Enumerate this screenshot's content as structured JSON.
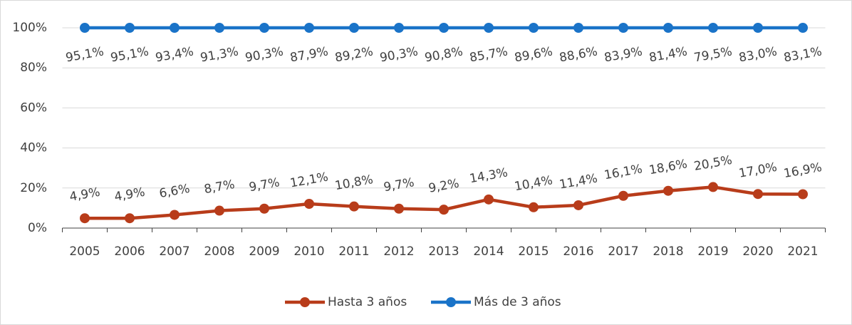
{
  "chart_data": {
    "type": "line",
    "stacked": true,
    "categories": [
      "2005",
      "2006",
      "2007",
      "2008",
      "2009",
      "2010",
      "2011",
      "2012",
      "2013",
      "2014",
      "2015",
      "2016",
      "2017",
      "2018",
      "2019",
      "2020",
      "2021"
    ],
    "series": [
      {
        "name": "Hasta 3 años",
        "color": "#b83c1a",
        "values": [
          4.9,
          4.9,
          6.6,
          8.7,
          9.7,
          12.1,
          10.8,
          9.7,
          9.2,
          14.3,
          10.4,
          11.4,
          16.1,
          18.6,
          20.5,
          17.0,
          16.9
        ],
        "value_labels": [
          "4,9%",
          "4,9%",
          "6,6%",
          "8,7%",
          "9,7%",
          "12,1%",
          "10,8%",
          "9,7%",
          "9,2%",
          "14,3%",
          "10,4%",
          "11,4%",
          "16,1%",
          "18,6%",
          "20,5%",
          "17,0%",
          "16,9%"
        ]
      },
      {
        "name": "Más de 3 años",
        "color": "#1a73c8",
        "values": [
          95.1,
          95.1,
          93.4,
          91.3,
          90.3,
          87.9,
          89.2,
          90.3,
          90.8,
          85.7,
          89.6,
          88.6,
          83.9,
          81.4,
          79.5,
          83.0,
          83.1
        ],
        "value_labels": [
          "95,1%",
          "95,1%",
          "93,4%",
          "91,3%",
          "90,3%",
          "87,9%",
          "89,2%",
          "90,3%",
          "90,8%",
          "85,7%",
          "89,6%",
          "88,6%",
          "83,9%",
          "81,4%",
          "79,5%",
          "83,0%",
          "83,1%"
        ]
      }
    ],
    "ylim": [
      0,
      100
    ],
    "yticks": [
      {
        "value": 0,
        "label": "0%"
      },
      {
        "value": 20,
        "label": "20%"
      },
      {
        "value": 40,
        "label": "40%"
      },
      {
        "value": 60,
        "label": "60%"
      },
      {
        "value": 80,
        "label": "80%"
      },
      {
        "value": 100,
        "label": "100%"
      }
    ],
    "grid": true,
    "legend": "bottom"
  }
}
